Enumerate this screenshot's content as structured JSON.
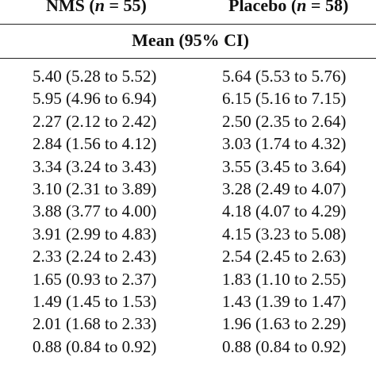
{
  "header": {
    "nms_label": "NMS (",
    "nms_n": "n",
    "nms_rest": " = 55)",
    "placebo_label": "Placebo (",
    "placebo_n": "n",
    "placebo_rest": " = 58)"
  },
  "subheader": "Mean (95% CI)",
  "rows": [
    {
      "nms": "5.40 (5.28 to 5.52)",
      "placebo": "5.64 (5.53 to 5.76)"
    },
    {
      "nms": "5.95 (4.96 to 6.94)",
      "placebo": "6.15 (5.16 to 7.15)"
    },
    {
      "nms": "2.27 (2.12 to 2.42)",
      "placebo": "2.50 (2.35 to 2.64)"
    },
    {
      "nms": "2.84 (1.56 to 4.12)",
      "placebo": "3.03 (1.74 to 4.32)"
    },
    {
      "nms": "3.34 (3.24 to 3.43)",
      "placebo": "3.55 (3.45 to 3.64)"
    },
    {
      "nms": "3.10 (2.31 to 3.89)",
      "placebo": "3.28 (2.49 to 4.07)"
    },
    {
      "nms": "3.88 (3.77 to 4.00)",
      "placebo": "4.18 (4.07 to 4.29)"
    },
    {
      "nms": "3.91 (2.99 to 4.83)",
      "placebo": "4.15 (3.23 to 5.08)"
    },
    {
      "nms": "2.33 (2.24 to 2.43)",
      "placebo": "2.54 (2.45 to 2.63)"
    },
    {
      "nms": "1.65 (0.93 to 2.37)",
      "placebo": "1.83 (1.10 to 2.55)"
    },
    {
      "nms": "1.49 (1.45 to 1.53)",
      "placebo": "1.43 (1.39 to 1.47)"
    },
    {
      "nms": "2.01 (1.68 to 2.33)",
      "placebo": "1.96 (1.63 to 2.29)"
    },
    {
      "nms": "0.88 (0.84 to 0.92)",
      "placebo": "0.88 (0.84 to 0.92)"
    }
  ]
}
